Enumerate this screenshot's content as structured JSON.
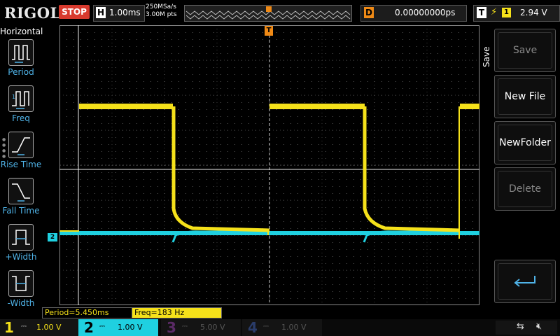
{
  "header": {
    "logo": "RIGOL",
    "run_state": "STOP",
    "horizontal_letter": "H",
    "timebase": "1.00ms",
    "sample_rate": "250MSa/s",
    "memory_depth": "3.00M pts",
    "delay_letter": "D",
    "delay": "0.00000000ps",
    "trigger_letter": "T",
    "trigger_edge": "⚡",
    "trigger_channel": "1",
    "trigger_level": "2.94 V"
  },
  "left_menu": {
    "title": "Horizontal",
    "items": [
      {
        "label": "Period",
        "icon": "period-icon"
      },
      {
        "label": "Freq",
        "icon": "freq-icon"
      },
      {
        "label": "Rise Time",
        "icon": "rise-time-icon"
      },
      {
        "label": "Fall Time",
        "icon": "fall-time-icon"
      },
      {
        "label": "+Width",
        "icon": "positive-width-icon"
      },
      {
        "label": "-Width",
        "icon": "negative-width-icon"
      }
    ]
  },
  "measurements": {
    "period": "Period=5.450ms",
    "freq": "Freq=183 Hz"
  },
  "right_menu": {
    "title": "Save",
    "buttons": [
      {
        "label": "Save",
        "enabled": false
      },
      {
        "label": "New File",
        "enabled": true
      },
      {
        "label": "NewFolder",
        "enabled": true
      },
      {
        "label": "Delete",
        "enabled": false
      }
    ],
    "return_icon": "return-arrow-icon"
  },
  "markers": {
    "ch2": "2",
    "trigger_pos": "T"
  },
  "channels": [
    {
      "num": "1",
      "value": "1.00 V",
      "color": "#f5e11a",
      "active": true
    },
    {
      "num": "2",
      "value": "1.00 V",
      "color": "#1fd0e0",
      "active": true
    },
    {
      "num": "3",
      "value": "5.00 V",
      "color": "#b040c8",
      "active": false
    },
    {
      "num": "4",
      "value": "1.00 V",
      "color": "#4070d8",
      "active": false
    }
  ],
  "colors": {
    "ch1": "#f5e11a",
    "ch2": "#1fd0e0",
    "trigger": "#f08a16",
    "menu_label": "#4fb3e8",
    "stop": "#d83a2e"
  }
}
